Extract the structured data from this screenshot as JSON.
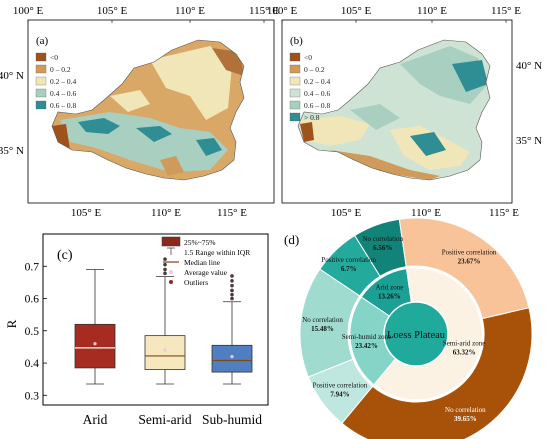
{
  "maps": [
    {
      "panel_label": "(a)",
      "x_ticks": [
        "100° E",
        "105° E",
        "110° E",
        "115° E"
      ],
      "y_ticks": [
        "40° N",
        "35° N"
      ],
      "legend": [
        {
          "label": "<0",
          "color": "#a0521d"
        },
        {
          "label": "0 – 0.2",
          "color": "#cf9a5a"
        },
        {
          "label": "0.2 – 0.4",
          "color": "#f1e6b8"
        },
        {
          "label": "0.4 – 0.6",
          "color": "#a8cfc0"
        },
        {
          "label": "0.6 – 0.8",
          "color": "#2f8d94"
        }
      ]
    },
    {
      "panel_label": "(b)",
      "x_ticks": [
        "100° E",
        "105° E",
        "110° E",
        "115° E"
      ],
      "y_ticks": [
        "40° N",
        "35° N"
      ],
      "legend": [
        {
          "label": "<0",
          "color": "#a0521d"
        },
        {
          "label": "0 – 0.2",
          "color": "#cf9a5a"
        },
        {
          "label": "0.2 – 0.4",
          "color": "#f1e6b8"
        },
        {
          "label": "0.4 – 0.6",
          "color": "#cfe3d4"
        },
        {
          "label": "0.6 – 0.8",
          "color": "#a8cfc0"
        },
        {
          "label": "> 0.8",
          "color": "#2f8d94"
        }
      ]
    }
  ],
  "chart_data": [
    {
      "type": "box",
      "panel_label": "(c)",
      "ylabel": "R",
      "ylim": [
        0.27,
        0.8
      ],
      "yticks": [
        "0.3",
        "0.4",
        "0.5",
        "0.6",
        "0.7"
      ],
      "categories": [
        "Arid",
        "Semi-arid",
        "Sub-humid"
      ],
      "colors": [
        "#a62b20",
        "#f7e7bf",
        "#4f7fc0"
      ],
      "boxes": [
        {
          "min": 0.335,
          "q1": 0.385,
          "median": 0.447,
          "q3": 0.52,
          "max": 0.69,
          "mean": 0.46,
          "outliers": []
        },
        {
          "min": 0.335,
          "q1": 0.38,
          "median": 0.422,
          "q3": 0.485,
          "max": 0.668,
          "mean": 0.44,
          "outliers": [
            0.678,
            0.69,
            0.705,
            0.722
          ]
        },
        {
          "min": 0.335,
          "q1": 0.372,
          "median": 0.408,
          "q3": 0.455,
          "max": 0.59,
          "mean": 0.42,
          "outliers": [
            0.6,
            0.612,
            0.625,
            0.64,
            0.655,
            0.67
          ]
        }
      ],
      "legend": [
        {
          "label": "25%~75%",
          "kind": "box"
        },
        {
          "label": "1.5 Range within IQR",
          "kind": "whisker"
        },
        {
          "label": "Median line",
          "kind": "median"
        },
        {
          "label": "Average value",
          "kind": "mean"
        },
        {
          "label": "Outliers",
          "kind": "outlier"
        }
      ]
    },
    {
      "type": "pie",
      "panel_label": "(d)",
      "center_label": "Loess Plateau",
      "inner": [
        {
          "label": "Arid zone",
          "value": 13.26,
          "pct": "13.26%",
          "color": "#1c9f94"
        },
        {
          "label": "Semi-arid zone",
          "value": 63.32,
          "pct": "63.32%",
          "color": "#fbf2e4"
        },
        {
          "label": "Semi-humid zone",
          "value": 23.42,
          "pct": "23.42%",
          "color": "#84d4c8"
        }
      ],
      "outer": [
        {
          "label": "Positive correlation",
          "value": 6.7,
          "pct": "6.7%",
          "color": "#24aa9c"
        },
        {
          "label": "No correlation",
          "value": 6.56,
          "pct": "6.56%",
          "color": "#128378"
        },
        {
          "label": "Positive correlation",
          "value": 23.67,
          "pct": "23.67%",
          "color": "#f9c39a"
        },
        {
          "label": "No correlation",
          "value": 39.65,
          "pct": "39.65%",
          "color": "#a75109"
        },
        {
          "label": "Positive correlation",
          "value": 7.94,
          "pct": "7.94%",
          "color": "#bfe7e0"
        },
        {
          "label": "No correlation",
          "value": 15.48,
          "pct": "15.48%",
          "color": "#9fdccf"
        }
      ]
    }
  ]
}
